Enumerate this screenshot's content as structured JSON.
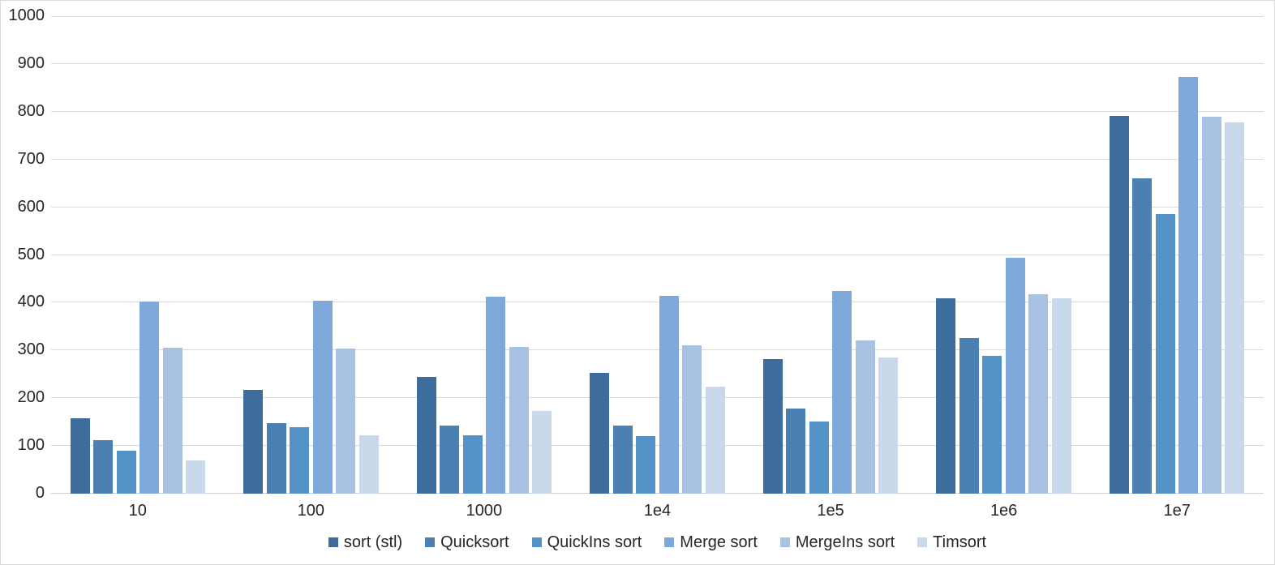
{
  "chart_data": {
    "type": "bar",
    "title": "",
    "categories": [
      "10",
      "100",
      "1000",
      "1e4",
      "1e5",
      "1e6",
      "1e7"
    ],
    "series": [
      {
        "name": "sort (stl)",
        "color": "#3E6D9D",
        "values": [
          158,
          218,
          245,
          253,
          282,
          410,
          792
        ]
      },
      {
        "name": "Quicksort",
        "color": "#4A80B2",
        "values": [
          112,
          148,
          142,
          143,
          179,
          326,
          661
        ]
      },
      {
        "name": "QuickIns sort",
        "color": "#5592C8",
        "values": [
          90,
          140,
          122,
          121,
          152,
          288,
          585
        ]
      },
      {
        "name": "Merge sort",
        "color": "#7EA9DA",
        "values": [
          402,
          404,
          412,
          415,
          424,
          494,
          872
        ]
      },
      {
        "name": "MergeIns sort",
        "color": "#A9C2E2",
        "values": [
          306,
          304,
          307,
          311,
          321,
          417,
          790
        ]
      },
      {
        "name": "Timsort",
        "color": "#CAD8EC",
        "values": [
          70,
          123,
          173,
          225,
          285,
          409,
          777
        ]
      }
    ],
    "ylim": [
      0,
      1000
    ],
    "ytick_interval": 100,
    "y_tick_labels": [
      "0",
      "100",
      "200",
      "300",
      "400",
      "500",
      "600",
      "700",
      "800",
      "900",
      "1000"
    ],
    "grid": true,
    "legend_position": "bottom",
    "colors": {
      "gridline": "#D9D9D9",
      "axis_line": "#D0D0D0",
      "text": "#262626",
      "background": "#FFFFFF",
      "border": "#D9D9D9"
    }
  }
}
